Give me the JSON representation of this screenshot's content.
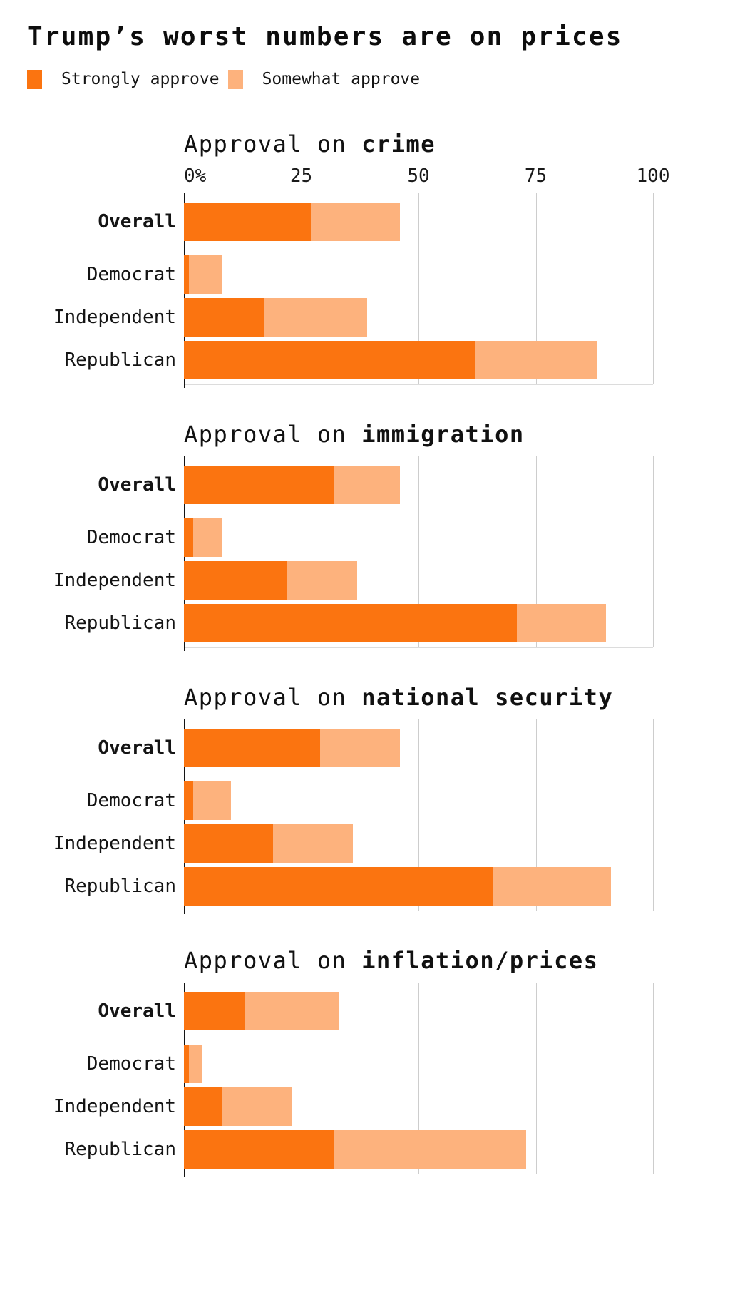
{
  "page": {
    "title": "Trump’s worst numbers are on prices",
    "background": "#ffffff"
  },
  "legend": {
    "items": [
      {
        "label": "Strongly approve",
        "color": "#fb7410"
      },
      {
        "label": "Somewhat approve",
        "color": "#fdb27d"
      }
    ]
  },
  "colors": {
    "strongly_approve": "#fb7410",
    "somewhat_approve": "#fdb27d",
    "text": "#141414",
    "gridline": "#cdcdcd",
    "axis_spine": "#141414",
    "baseline": "#dcdcdc",
    "background": "#ffffff"
  },
  "axis": {
    "tick_labels": [
      "0%",
      "25",
      "50",
      "75",
      "100"
    ],
    "tick_values": [
      0,
      25,
      50,
      75,
      100
    ],
    "min": 0,
    "max": 100
  },
  "chart_data": [
    {
      "type": "bar",
      "stacked": true,
      "orientation": "horizontal",
      "title_prefix": "Approval on",
      "topic": "crime",
      "show_axis_labels": true,
      "grid": true,
      "xlim": [
        0,
        100
      ],
      "categories": [
        "Overall",
        "Democrat",
        "Independent",
        "Republican"
      ],
      "series": [
        {
          "name": "Strongly approve",
          "values": [
            27,
            1,
            17,
            62
          ]
        },
        {
          "name": "Somewhat approve",
          "values": [
            19,
            7,
            22,
            26
          ]
        }
      ],
      "totals": [
        46,
        8,
        39,
        88
      ]
    },
    {
      "type": "bar",
      "stacked": true,
      "orientation": "horizontal",
      "title_prefix": "Approval on",
      "topic": "immigration",
      "show_axis_labels": false,
      "grid": true,
      "xlim": [
        0,
        100
      ],
      "categories": [
        "Overall",
        "Democrat",
        "Independent",
        "Republican"
      ],
      "series": [
        {
          "name": "Strongly approve",
          "values": [
            32,
            2,
            22,
            71
          ]
        },
        {
          "name": "Somewhat approve",
          "values": [
            14,
            6,
            15,
            19
          ]
        }
      ],
      "totals": [
        46,
        8,
        37,
        90
      ]
    },
    {
      "type": "bar",
      "stacked": true,
      "orientation": "horizontal",
      "title_prefix": "Approval on",
      "topic": "national security",
      "show_axis_labels": false,
      "grid": true,
      "xlim": [
        0,
        100
      ],
      "categories": [
        "Overall",
        "Democrat",
        "Independent",
        "Republican"
      ],
      "series": [
        {
          "name": "Strongly approve",
          "values": [
            29,
            2,
            19,
            66
          ]
        },
        {
          "name": "Somewhat approve",
          "values": [
            17,
            8,
            17,
            25
          ]
        }
      ],
      "totals": [
        46,
        10,
        36,
        91
      ]
    },
    {
      "type": "bar",
      "stacked": true,
      "orientation": "horizontal",
      "title_prefix": "Approval on",
      "topic": "inflation/prices",
      "show_axis_labels": false,
      "grid": true,
      "xlim": [
        0,
        100
      ],
      "categories": [
        "Overall",
        "Democrat",
        "Independent",
        "Republican"
      ],
      "series": [
        {
          "name": "Strongly approve",
          "values": [
            13,
            1,
            8,
            32
          ]
        },
        {
          "name": "Somewhat approve",
          "values": [
            20,
            3,
            15,
            41
          ]
        }
      ],
      "totals": [
        33,
        4,
        23,
        73
      ]
    }
  ]
}
